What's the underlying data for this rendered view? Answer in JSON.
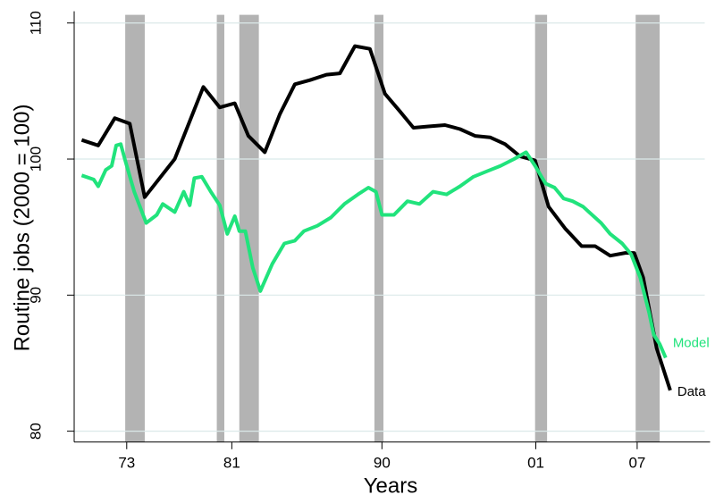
{
  "chart_data": {
    "type": "line",
    "x_label": "Years",
    "y_label": "Routine jobs (2000 = 100)",
    "xlim": [
      1970.5,
      2012.5
    ],
    "ylim": [
      79.2,
      110.6
    ],
    "xticks": [
      {
        "value": 1974,
        "label": "73"
      },
      {
        "value": 1981,
        "label": "81"
      },
      {
        "value": 1991,
        "label": "90"
      },
      {
        "value": 2001.25,
        "label": "01"
      },
      {
        "value": 2008,
        "label": "07"
      }
    ],
    "yticks": [
      80,
      90,
      100,
      110
    ],
    "grid": true,
    "shaded_periods": [
      [
        1973.9,
        1975.2
      ],
      [
        1980.0,
        1980.5
      ],
      [
        1981.5,
        1982.8
      ],
      [
        1990.5,
        1991.1
      ],
      [
        2001.2,
        2002.0
      ],
      [
        2007.9,
        2009.5
      ]
    ],
    "shade_color": "#b3b3b3",
    "series": [
      {
        "name": "Data",
        "color": "#000000",
        "x": [
          1971.0,
          1972.1,
          1973.2,
          1974.2,
          1975.2,
          1977.2,
          1979.1,
          1980.2,
          1981.2,
          1982.1,
          1983.2,
          1984.2,
          1985.2,
          1986.2,
          1987.3,
          1988.2,
          1989.2,
          1990.2,
          1991.2,
          1992.2,
          1993.1,
          1994.1,
          1995.2,
          1996.2,
          1997.2,
          1998.2,
          1999.2,
          2000.2,
          2001.2,
          2002.1,
          2003.2,
          2004.3,
          2005.2,
          2006.2,
          2007.2,
          2007.8,
          2008.4,
          2009.3,
          2010.2
        ],
        "values": [
          101.4,
          101.0,
          103.0,
          102.6,
          97.2,
          100.0,
          105.3,
          103.8,
          104.1,
          101.7,
          100.5,
          103.3,
          105.5,
          105.8,
          106.2,
          106.3,
          108.3,
          108.1,
          104.8,
          103.5,
          102.3,
          102.4,
          102.5,
          102.2,
          101.7,
          101.6,
          101.1,
          100.2,
          99.9,
          96.5,
          94.9,
          93.6,
          93.6,
          92.9,
          93.1,
          93.1,
          91.3,
          86.1,
          83.0
        ]
      },
      {
        "name": "Model",
        "color": "#21e37c",
        "x": [
          1971.0,
          1971.8,
          1972.1,
          1972.6,
          1973.0,
          1973.3,
          1973.6,
          1973.9,
          1974.5,
          1975.3,
          1976.0,
          1976.4,
          1977.2,
          1977.8,
          1978.2,
          1978.5,
          1979.0,
          1979.6,
          1980.2,
          1980.7,
          1981.2,
          1981.5,
          1981.9,
          1982.4,
          1982.9,
          1983.7,
          1984.5,
          1985.2,
          1985.8,
          1986.7,
          1987.6,
          1988.5,
          1989.4,
          1990.1,
          1990.6,
          1991.0,
          1991.8,
          1992.7,
          1993.5,
          1994.4,
          1995.3,
          1996.2,
          1997.1,
          1998.0,
          1998.9,
          1999.8,
          2000.6,
          2001.2,
          2001.9,
          2002.5,
          2003.1,
          2003.7,
          2004.4,
          2005.0,
          2005.6,
          2006.2,
          2007.0,
          2007.6,
          2008.2,
          2008.8,
          2009.1,
          2009.5,
          2009.9
        ],
        "values": [
          98.8,
          98.5,
          98.0,
          99.2,
          99.5,
          101.0,
          101.1,
          99.9,
          97.6,
          95.3,
          95.9,
          96.7,
          96.1,
          97.6,
          96.6,
          98.6,
          98.7,
          97.6,
          96.6,
          94.5,
          95.8,
          94.7,
          94.7,
          92.0,
          90.3,
          92.3,
          93.8,
          94.0,
          94.7,
          95.1,
          95.7,
          96.7,
          97.4,
          97.9,
          97.6,
          95.9,
          95.9,
          96.9,
          96.7,
          97.6,
          97.4,
          98.0,
          98.7,
          99.1,
          99.5,
          100.0,
          100.5,
          99.5,
          98.2,
          97.9,
          97.1,
          96.9,
          96.5,
          95.9,
          95.3,
          94.5,
          93.8,
          93.0,
          91.3,
          88.7,
          87.1,
          86.4,
          85.4
        ]
      }
    ]
  }
}
